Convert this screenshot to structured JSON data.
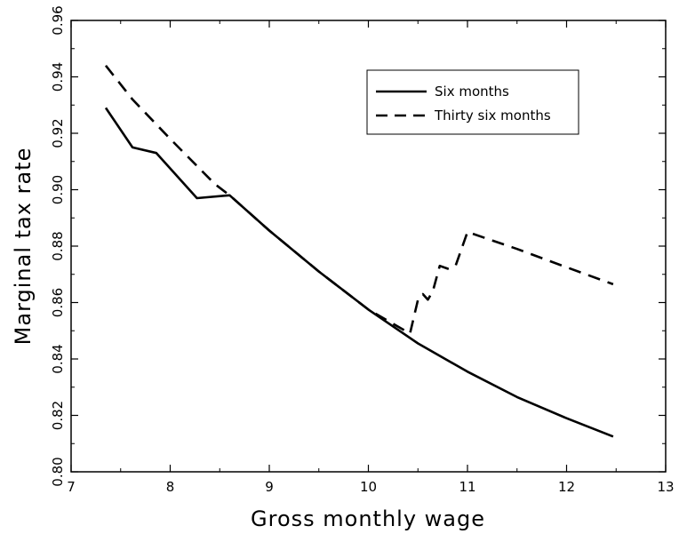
{
  "chart_data": {
    "type": "line",
    "title": "",
    "xlabel": "Gross monthly wage",
    "ylabel": "Marginal tax rate",
    "xlim": [
      7,
      13
    ],
    "ylim": [
      0.8,
      0.96
    ],
    "xticks": [
      "7",
      "8",
      "9",
      "10",
      "11",
      "12",
      "13"
    ],
    "yticks": [
      "0.80",
      "0.82",
      "0.84",
      "0.86",
      "0.88",
      "0.90",
      "0.92",
      "0.94",
      "0.96"
    ],
    "grid": false,
    "legend_position": "top-right",
    "series": [
      {
        "name": "Six months",
        "style": "solid",
        "color": "#000000",
        "x": [
          7.35,
          7.62,
          7.86,
          8.27,
          8.6,
          9.0,
          9.5,
          10.0,
          10.5,
          11.0,
          11.5,
          12.0,
          12.47
        ],
        "y": [
          0.929,
          0.915,
          0.913,
          0.897,
          0.898,
          0.8855,
          0.871,
          0.8575,
          0.8455,
          0.8355,
          0.8265,
          0.819,
          0.8125
        ]
      },
      {
        "name": "Thirty six months",
        "style": "dashed",
        "color": "#000000",
        "x": [
          7.35,
          7.62,
          8.0,
          8.45,
          8.6,
          9.0,
          9.5,
          10.0,
          10.42,
          10.5,
          10.55,
          10.6,
          10.65,
          10.72,
          10.8,
          10.88,
          10.95,
          11.0,
          11.5,
          12.0,
          12.47
        ],
        "y": [
          0.944,
          0.932,
          0.918,
          0.902,
          0.898,
          0.8855,
          0.871,
          0.8575,
          0.849,
          0.861,
          0.863,
          0.861,
          0.864,
          0.873,
          0.872,
          0.873,
          0.88,
          0.885,
          0.879,
          0.8725,
          0.8665
        ]
      }
    ]
  }
}
